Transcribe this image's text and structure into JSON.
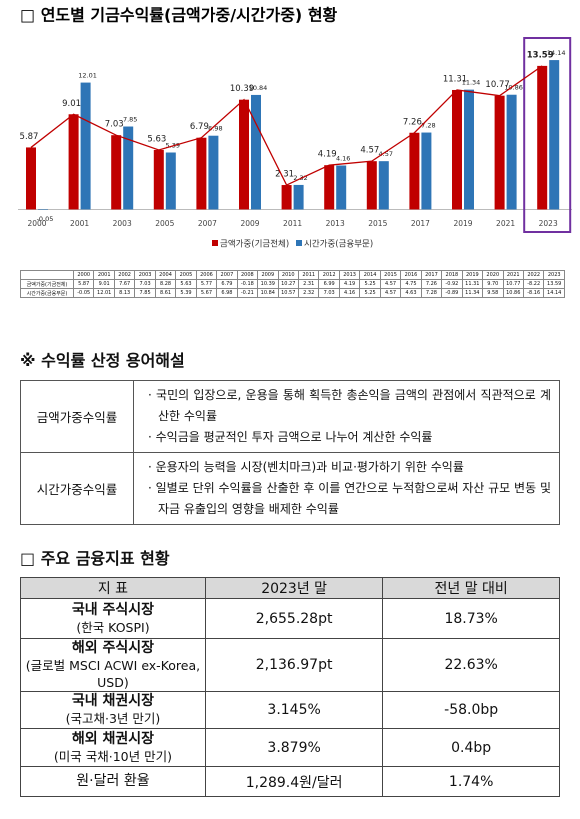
{
  "section1": {
    "title": "□ 연도별 기금수익률(금액가중/시간가중) 현황"
  },
  "chart_data": {
    "type": "bar",
    "categories": [
      "2000",
      "2001",
      "2003",
      "2005",
      "2007",
      "2009",
      "2011",
      "2013",
      "2015",
      "2017",
      "2019",
      "2021",
      "2023"
    ],
    "series": [
      {
        "name": "금액가중(기금전체)",
        "color": "#c00000",
        "values": [
          5.87,
          9.01,
          7.03,
          5.63,
          6.79,
          10.39,
          2.31,
          4.19,
          4.57,
          7.26,
          11.31,
          10.77,
          13.59
        ]
      },
      {
        "name": "시간가중(금융부문)",
        "color": "#2e75b6",
        "values": [
          -0.05,
          12.01,
          7.85,
          5.39,
          6.98,
          10.84,
          2.32,
          4.16,
          4.57,
          7.28,
          11.34,
          10.86,
          14.14
        ]
      }
    ],
    "line_series": 0,
    "line_color": "#c00000",
    "ylim": [
      -1,
      15
    ],
    "legend": "bottom"
  },
  "data_table": {
    "years": [
      "2000",
      "2001",
      "2002",
      "2003",
      "2004",
      "2005",
      "2006",
      "2007",
      "2008",
      "2009",
      "2010",
      "2011",
      "2012",
      "2013",
      "2014",
      "2015",
      "2016",
      "2017",
      "2018",
      "2019",
      "2020",
      "2021",
      "2022",
      "2023"
    ],
    "rows": [
      {
        "label": "금액가중(기금전체)",
        "values": [
          "5.87",
          "9.01",
          "7.67",
          "7.03",
          "8.28",
          "5.63",
          "5.77",
          "6.79",
          "-0.18",
          "10.39",
          "10.27",
          "2.31",
          "6.99",
          "4.19",
          "5.25",
          "4.57",
          "4.75",
          "7.26",
          "-0.92",
          "11.31",
          "9.70",
          "10.77",
          "-8.22",
          "13.59"
        ]
      },
      {
        "label": "시간가중(금융부문)",
        "values": [
          "-0.05",
          "12.01",
          "8.13",
          "7.85",
          "8.61",
          "5.39",
          "5.67",
          "6.98",
          "-0.21",
          "10.84",
          "10.57",
          "2.32",
          "7.03",
          "4.16",
          "5.25",
          "4.57",
          "4.63",
          "7.28",
          "-0.89",
          "11.34",
          "9.58",
          "10.86",
          "-8.16",
          "14.14"
        ]
      }
    ]
  },
  "section2": {
    "title": "※ 수익률 산정 용어해설",
    "rows": [
      {
        "term": "금액가중수익률",
        "items": [
          "· 국민의 입장으로, 운용을 통해 획득한 총손익을 금액의 관점에서 직관적으로 계산한 수익률",
          "· 수익금을 평균적인 투자 금액으로 나누어 계산한 수익률"
        ]
      },
      {
        "term": "시간가중수익률",
        "items": [
          "· 운용자의 능력을 시장(벤치마크)과 비교·평가하기 위한 수익률",
          "· 일별로 단위 수익률을 산출한 후 이를 연간으로 누적함으로써 자산 규모 변동 및 자금 유출입의 영향을 배제한 수익률"
        ]
      }
    ]
  },
  "section3": {
    "title": "□ 주요 금융지표 현황",
    "header": [
      "지 표",
      "2023년 말",
      "전년 말 대비"
    ],
    "rows": [
      {
        "name": "국내 주식시장",
        "sub": "(한국 KOSPI)",
        "value": "2,655.28pt",
        "change": "18.73%"
      },
      {
        "name": "해외 주식시장",
        "sub": "(글로벌 MSCI ACWI ex-Korea, USD)",
        "value": "2,136.97pt",
        "change": "22.63%"
      },
      {
        "name": "국내 채권시장",
        "sub": "(국고채·3년 만기)",
        "value": "3.145%",
        "change": "-58.0bp"
      },
      {
        "name": "해외 채권시장",
        "sub": "(미국 국채·10년 만기)",
        "value": "3.879%",
        "change": "0.4bp"
      },
      {
        "name": "원·달러 환율",
        "value": "1,289.4원/달러",
        "change": "1.74%"
      }
    ]
  }
}
